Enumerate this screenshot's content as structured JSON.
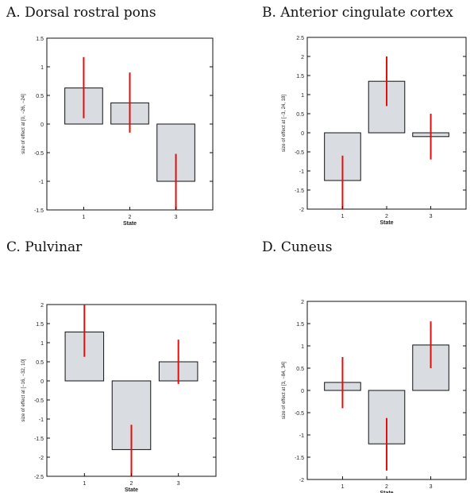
{
  "chart_data": [
    {
      "panel": "A",
      "type": "bar",
      "title": "A. Dorsal rostral pons",
      "xlabel": "State",
      "ylabel": "size of effect at [0, −26, −24]",
      "categories": [
        "1",
        "2",
        "3"
      ],
      "values": [
        0.63,
        0.37,
        -1.0
      ],
      "errors": [
        [
          0.1,
          1.17
        ],
        [
          -0.15,
          0.9
        ],
        [
          -1.5,
          -0.52
        ]
      ],
      "ylim": [
        -1.5,
        1.5
      ],
      "yticks": [
        "1.5",
        "1",
        "0.5",
        "0",
        "-0.5",
        "-1",
        "-1.5"
      ],
      "ytick_values": [
        1.5,
        1,
        0.5,
        0,
        -0.5,
        -1,
        -1.5
      ]
    },
    {
      "panel": "B",
      "type": "bar",
      "title": "B. Anterior cingulate cortex",
      "xlabel": "State",
      "ylabel": "size of effect at [−3, 24, 18]",
      "categories": [
        "1",
        "2",
        "3"
      ],
      "values": [
        -1.25,
        1.35,
        -0.1
      ],
      "errors": [
        [
          -2.0,
          -0.6
        ],
        [
          0.7,
          2.0
        ],
        [
          -0.7,
          0.5
        ]
      ],
      "ylim": [
        -2,
        2.5
      ],
      "yticks": [
        "2.5",
        "2",
        "1.5",
        "1",
        "0.5",
        "0",
        "-0.5",
        "-1",
        "-1.5",
        "-2"
      ],
      "ytick_values": [
        2.5,
        2,
        1.5,
        1,
        0.5,
        0,
        -0.5,
        -1,
        -1.5,
        -2
      ]
    },
    {
      "panel": "C",
      "type": "bar",
      "title": "C. Pulvinar",
      "xlabel": "State",
      "ylabel": "size of effect at [−16, −32, 10]",
      "categories": [
        "1",
        "2",
        "3"
      ],
      "values": [
        1.28,
        -1.8,
        0.5
      ],
      "errors": [
        [
          0.63,
          2.0
        ],
        [
          -2.5,
          -1.15
        ],
        [
          -0.08,
          1.08
        ]
      ],
      "ylim": [
        -2.5,
        2
      ],
      "yticks": [
        "2",
        "1.5",
        "1",
        "0.5",
        "0",
        "-0.5",
        "-1",
        "-1.5",
        "-2",
        "-2.5"
      ],
      "ytick_values": [
        2,
        1.5,
        1,
        0.5,
        0,
        -0.5,
        -1,
        -1.5,
        -2,
        -2.5
      ]
    },
    {
      "panel": "D",
      "type": "bar",
      "title": "D. Cuneus",
      "xlabel": "State",
      "ylabel": "size of effect at [3, −84, 34]",
      "categories": [
        "1",
        "2",
        "3"
      ],
      "values": [
        0.18,
        -1.2,
        1.02
      ],
      "errors": [
        [
          -0.4,
          0.75
        ],
        [
          -1.8,
          -0.62
        ],
        [
          0.5,
          1.55
        ]
      ],
      "ylim": [
        -2,
        2
      ],
      "yticks": [
        "2",
        "1.5",
        "1",
        "0.5",
        "0",
        "-0.5",
        "-1",
        "-1.5",
        "-2"
      ],
      "ytick_values": [
        2,
        1.5,
        1,
        0.5,
        0,
        -0.5,
        -1,
        -1.5,
        -2
      ]
    }
  ],
  "colors": {
    "bar_fill": "#d9dde2",
    "bar_stroke": "#111111",
    "error_bar": "#e01010",
    "axis": "#111111"
  }
}
